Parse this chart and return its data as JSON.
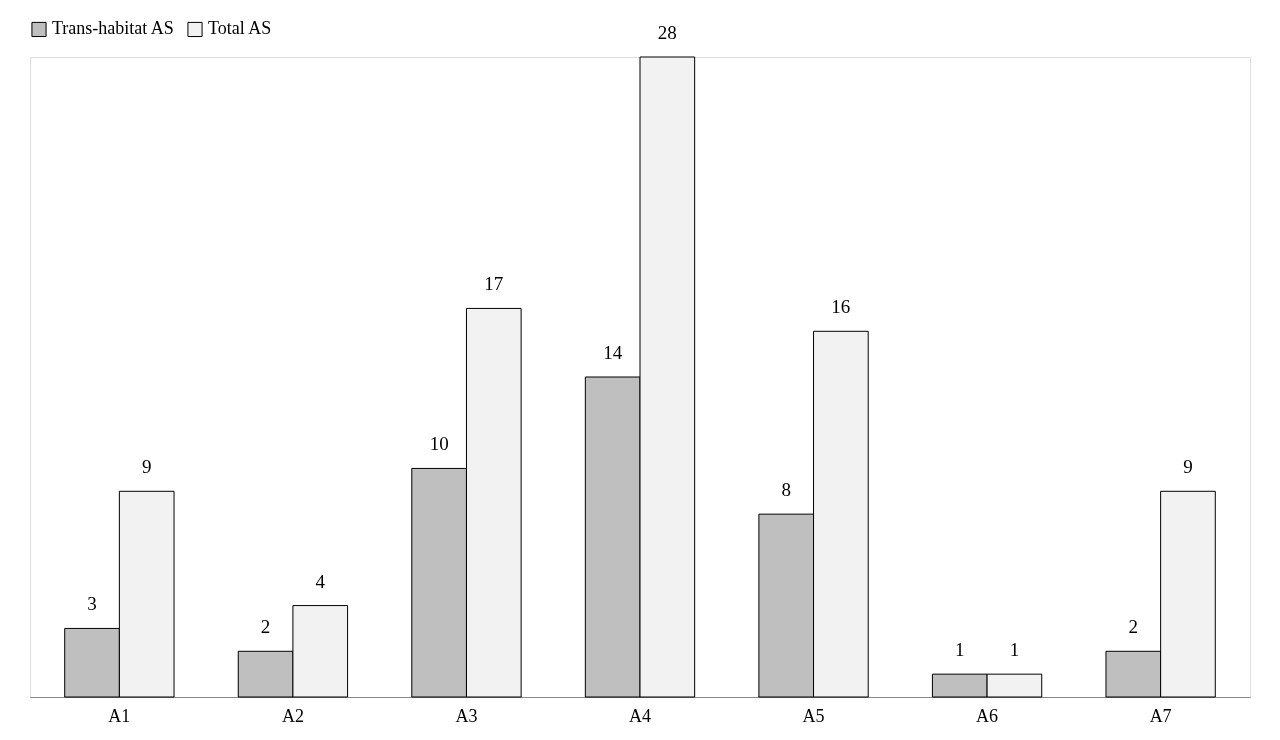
{
  "chart_data": {
    "type": "bar",
    "categories": [
      "A1",
      "A2",
      "A3",
      "A4",
      "A5",
      "A6",
      "A7"
    ],
    "series": [
      {
        "name": "Trans-habitat AS",
        "color": "#bfbfbf",
        "values": [
          3,
          2,
          10,
          14,
          8,
          1,
          2
        ]
      },
      {
        "name": "Total AS",
        "color": "#f2f2f2",
        "values": [
          9,
          4,
          17,
          28,
          16,
          1,
          9
        ]
      }
    ],
    "data_labels": true,
    "legend": "top",
    "grid": false
  }
}
